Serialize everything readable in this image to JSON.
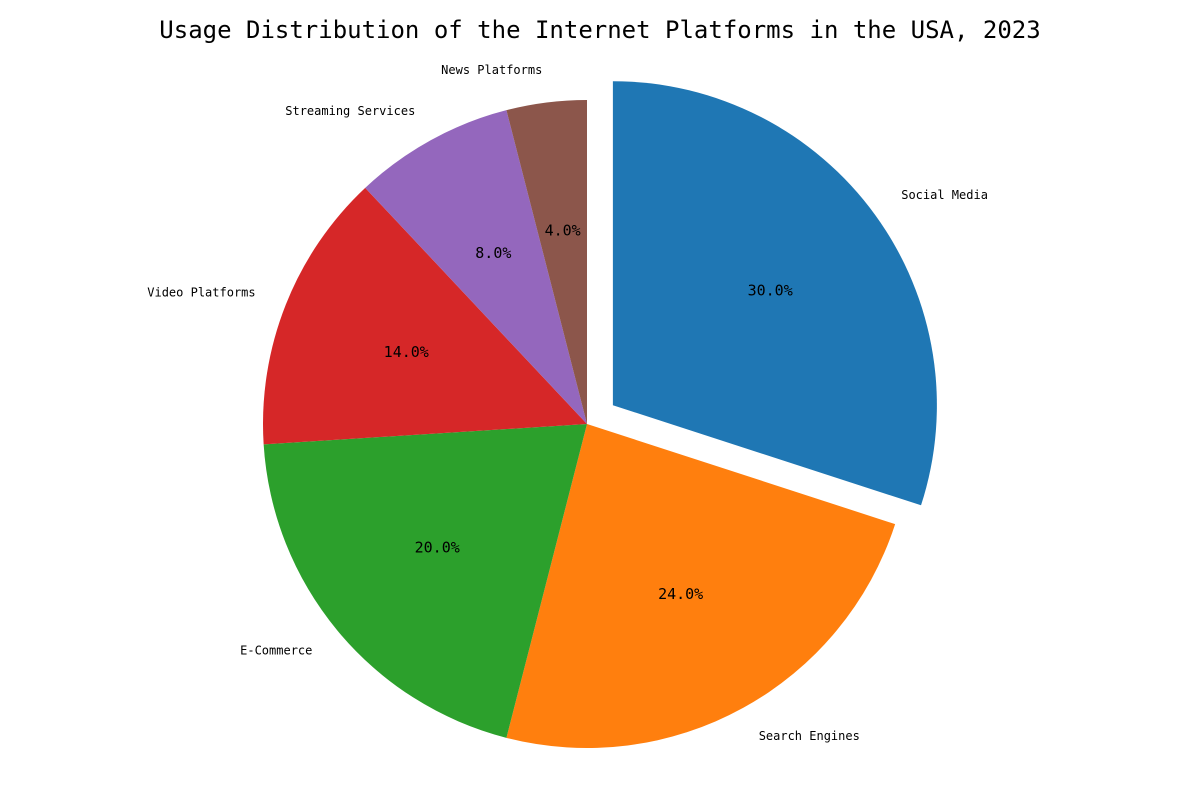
{
  "chart_data": {
    "type": "pie",
    "title": "Usage Distribution of the Internet Platforms in the USA, 2023",
    "slices": [
      {
        "label": "Social Media",
        "value": 30,
        "pct_label": "30.0%",
        "color": "#1f77b4",
        "explode": true
      },
      {
        "label": "Search Engines",
        "value": 24,
        "pct_label": "24.0%",
        "color": "#ff7f0e",
        "explode": false
      },
      {
        "label": "E-Commerce",
        "value": 20,
        "pct_label": "20.0%",
        "color": "#2ca02c",
        "explode": false
      },
      {
        "label": "Video Platforms",
        "value": 14,
        "pct_label": "14.0%",
        "color": "#d62728",
        "explode": false
      },
      {
        "label": "Streaming Services",
        "value": 8,
        "pct_label": "8.0%",
        "color": "#9467bd",
        "explode": false
      },
      {
        "label": "News Platforms",
        "value": 4,
        "pct_label": "4.0%",
        "color": "#8c564b",
        "explode": false
      }
    ],
    "start_angle_deg": 90,
    "direction": "clockwise",
    "legend": "none"
  }
}
